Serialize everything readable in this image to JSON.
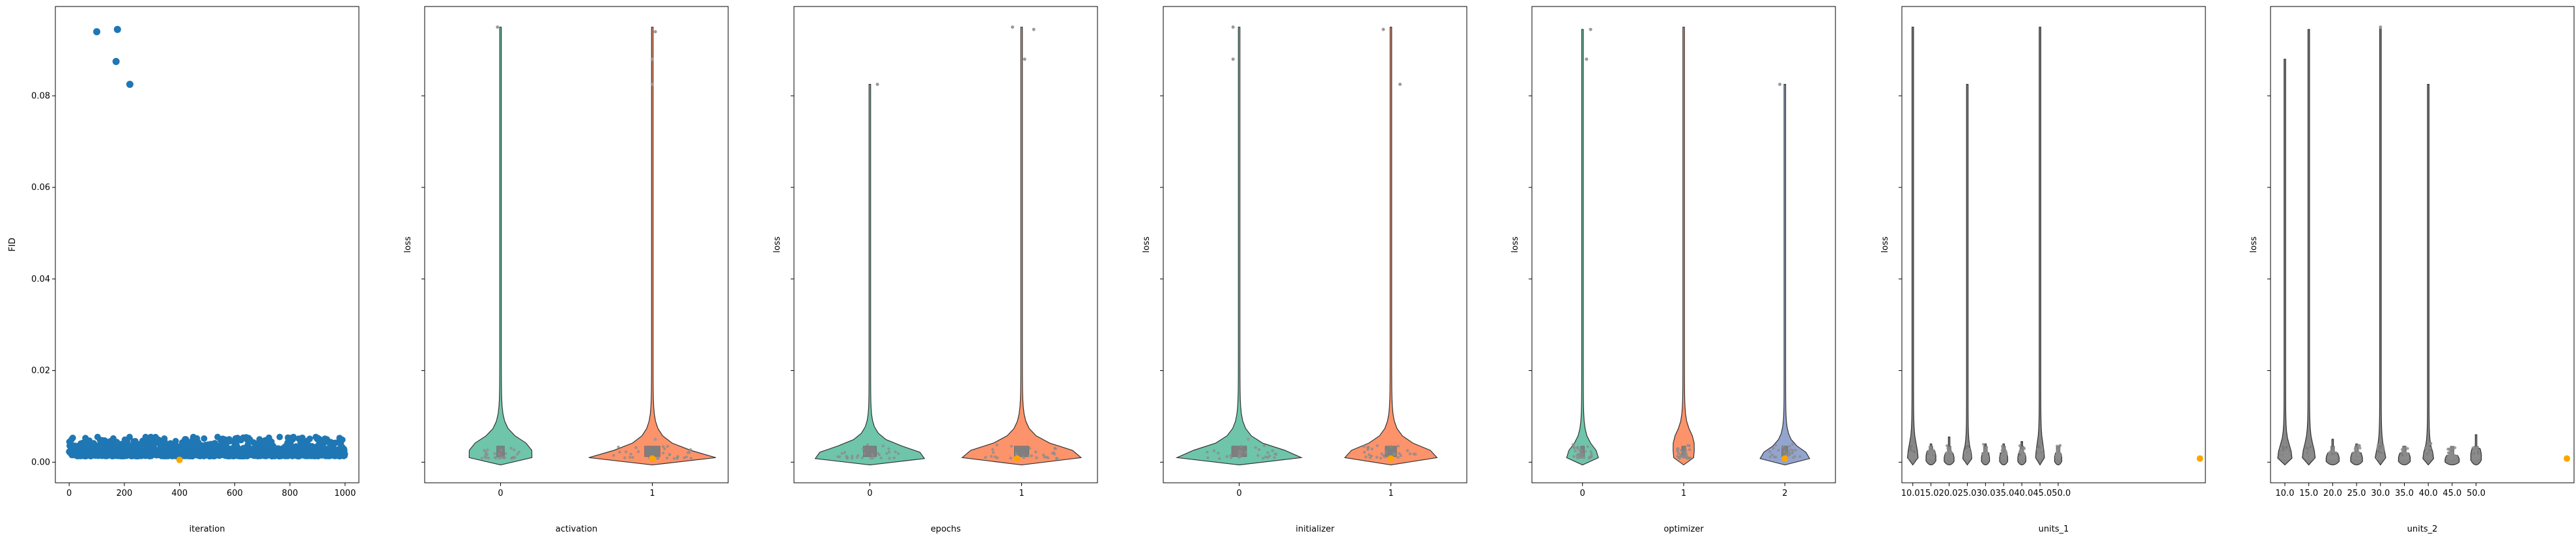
{
  "chart_data": [
    {
      "type": "scatter",
      "xlabel": "iteration",
      "ylabel": "FID",
      "xlim": [
        -50,
        1050
      ],
      "ylim": [
        -0.0045,
        0.0995
      ],
      "x_ticks": [
        "0",
        "200",
        "400",
        "600",
        "800",
        "1000"
      ],
      "y_ticks": [
        "0.00",
        "0.02",
        "0.04",
        "0.06",
        "0.08"
      ],
      "series_color": "#1f77b4",
      "highlight_color": "#ffa500",
      "outliers": [
        {
          "x": 100,
          "y": 0.094
        },
        {
          "x": 175,
          "y": 0.0945
        },
        {
          "x": 170,
          "y": 0.0875
        },
        {
          "x": 220,
          "y": 0.0825
        }
      ],
      "highlight": {
        "x": 400,
        "y": 0.0005
      },
      "bulk": {
        "n": 1000,
        "y_min": 0.0005,
        "y_max": 0.0055
      }
    },
    {
      "type": "violin",
      "xlabel": "activation",
      "ylabel": "loss",
      "categories": [
        "0",
        "1"
      ],
      "violins": [
        {
          "color": "#66c2a5",
          "max": 0.095,
          "bulge": 0.0045,
          "width": 0.42
        },
        {
          "color": "#fc8d62",
          "max": 0.095,
          "bulge": 0.002,
          "width": 0.85
        }
      ],
      "outliers": [
        {
          "x": -0.02,
          "y": 0.095
        },
        {
          "x": 1.02,
          "y": 0.094
        },
        {
          "x": 1.0,
          "y": 0.088
        },
        {
          "x": 1.0,
          "y": 0.0825
        },
        {
          "x": 1.02,
          "y": 0.005
        }
      ],
      "highlight": {
        "x": 1.0,
        "y": 0.0008
      }
    },
    {
      "type": "violin",
      "xlabel": "epochs",
      "ylabel": "loss",
      "categories": [
        "0",
        "1"
      ],
      "violins": [
        {
          "color": "#66c2a5",
          "max": 0.0825,
          "bulge": 0.003,
          "width": 0.72
        },
        {
          "color": "#fc8d62",
          "max": 0.095,
          "bulge": 0.003,
          "width": 0.8
        }
      ],
      "outliers": [
        {
          "x": 0.05,
          "y": 0.0825
        },
        {
          "x": 0.94,
          "y": 0.095
        },
        {
          "x": 1.08,
          "y": 0.0945
        },
        {
          "x": 1.02,
          "y": 0.088
        }
      ],
      "highlight": {
        "x": 0.97,
        "y": 0.0008
      }
    },
    {
      "type": "violin",
      "xlabel": "initializer",
      "ylabel": "loss",
      "categories": [
        "0",
        "1"
      ],
      "violins": [
        {
          "color": "#66c2a5",
          "max": 0.095,
          "bulge": 0.0025,
          "width": 0.82
        },
        {
          "color": "#fc8d62",
          "max": 0.095,
          "bulge": 0.003,
          "width": 0.62
        }
      ],
      "outliers": [
        {
          "x": -0.04,
          "y": 0.095
        },
        {
          "x": -0.04,
          "y": 0.088
        },
        {
          "x": 0.95,
          "y": 0.0945
        },
        {
          "x": 1.06,
          "y": 0.0825
        },
        {
          "x": 0.06,
          "y": 0.005
        }
      ],
      "highlight": {
        "x": 1.0,
        "y": 0.0008
      }
    },
    {
      "type": "violin",
      "xlabel": "optimizer",
      "ylabel": "loss",
      "categories": [
        "0",
        "1",
        "2"
      ],
      "violins": [
        {
          "color": "#66c2a5",
          "max": 0.0945,
          "bulge": 0.003,
          "width": 0.32
        },
        {
          "color": "#fc8d62",
          "max": 0.095,
          "bulge": 0.006,
          "width": 0.22
        },
        {
          "color": "#8da0cb",
          "max": 0.0825,
          "bulge": 0.0025,
          "width": 0.5
        }
      ],
      "outliers": [
        {
          "x": 0.08,
          "y": 0.0945
        },
        {
          "x": 0.04,
          "y": 0.088
        },
        {
          "x": 1.95,
          "y": 0.0825
        }
      ],
      "highlight": {
        "x": 2.0,
        "y": 0.0008
      }
    },
    {
      "type": "violin",
      "xlabel": "units_1",
      "ylabel": "loss",
      "categories": [
        "10.0",
        "15.0",
        "20.0",
        "25.0",
        "30.0",
        "35.0",
        "40.0",
        "45.0",
        "50.0"
      ],
      "x_ticks_text": "10.015.020.025.030.035.040.045.050.0",
      "xlim": [
        -0.6,
        16.1
      ],
      "violins": [
        {
          "color": "#808080",
          "max": 0.095,
          "bulge": 0.003,
          "width": 0.6
        },
        {
          "color": "#808080",
          "max": 0.004,
          "bulge": 0.0025,
          "width": 0.55
        },
        {
          "color": "#808080",
          "max": 0.0055,
          "bulge": 0.002,
          "width": 0.55
        },
        {
          "color": "#808080",
          "max": 0.0825,
          "bulge": 0.002,
          "width": 0.5
        },
        {
          "color": "#808080",
          "max": 0.004,
          "bulge": 0.002,
          "width": 0.45
        },
        {
          "color": "#808080",
          "max": 0.004,
          "bulge": 0.002,
          "width": 0.45
        },
        {
          "color": "#808080",
          "max": 0.0045,
          "bulge": 0.002,
          "width": 0.45
        },
        {
          "color": "#808080",
          "max": 0.095,
          "bulge": 0.003,
          "width": 0.5
        },
        {
          "color": "#808080",
          "max": 0.0035,
          "bulge": 0.002,
          "width": 0.4
        }
      ],
      "outliers": [],
      "highlight": {
        "x": 15.8,
        "y": 0.0008
      }
    },
    {
      "type": "violin",
      "xlabel": "units_2",
      "ylabel": "loss",
      "categories": [
        "10.0",
        "15.0",
        "20.0",
        "25.0",
        "30.0",
        "35.0",
        "40.0",
        "45.0",
        "50.0"
      ],
      "xlim": [
        -0.6,
        12.1
      ],
      "violins": [
        {
          "color": "#808080",
          "max": 0.088,
          "bulge": 0.003,
          "width": 0.6
        },
        {
          "color": "#808080",
          "max": 0.0945,
          "bulge": 0.003,
          "width": 0.55
        },
        {
          "color": "#808080",
          "max": 0.005,
          "bulge": 0.002,
          "width": 0.55
        },
        {
          "color": "#808080",
          "max": 0.004,
          "bulge": 0.002,
          "width": 0.5
        },
        {
          "color": "#808080",
          "max": 0.095,
          "bulge": 0.002,
          "width": 0.45
        },
        {
          "color": "#808080",
          "max": 0.0035,
          "bulge": 0.002,
          "width": 0.5
        },
        {
          "color": "#808080",
          "max": 0.0825,
          "bulge": 0.002,
          "width": 0.45
        },
        {
          "color": "#808080",
          "max": 0.003,
          "bulge": 0.0015,
          "width": 0.6
        },
        {
          "color": "#808080",
          "max": 0.006,
          "bulge": 0.003,
          "width": 0.45
        }
      ],
      "outliers": [
        {
          "x": 4.0,
          "y": 0.095
        }
      ],
      "highlight": {
        "x": 11.8,
        "y": 0.0008
      }
    }
  ]
}
